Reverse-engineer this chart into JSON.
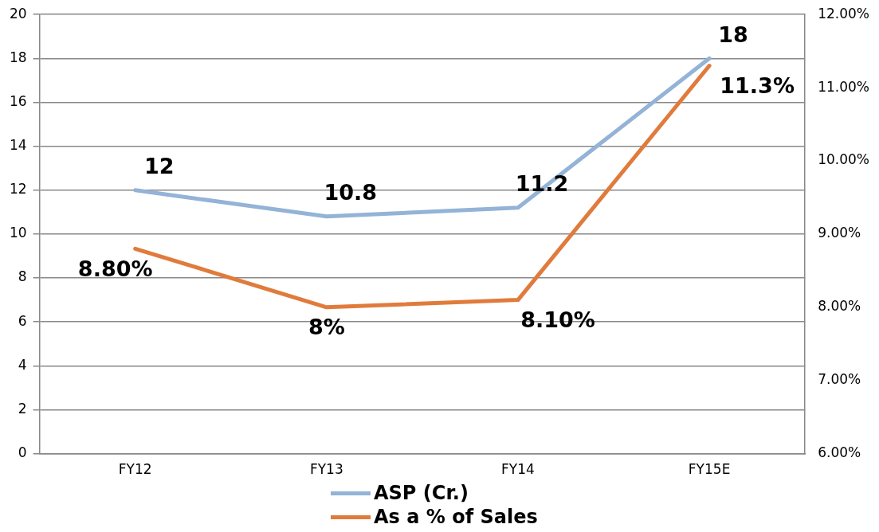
{
  "chart_data": {
    "type": "line",
    "categories": [
      "FY12",
      "FY13",
      "FY14",
      "FY15E"
    ],
    "series": [
      {
        "name": "ASP (Cr.)",
        "color": "#93b3d7",
        "values": [
          12,
          10.8,
          11.2,
          18
        ],
        "value_labels": [
          "12",
          "10.8",
          "11.2",
          "18"
        ]
      },
      {
        "name": "As a % of Sales",
        "color": "#e07b3c",
        "axis": "y2",
        "values": [
          8.8,
          8,
          8.1,
          11.3
        ],
        "value_labels": [
          "8.80%",
          "8%",
          "8.10%",
          "11.3%"
        ]
      }
    ],
    "ylim": [
      0,
      20
    ],
    "yticks": [
      0,
      2,
      4,
      6,
      8,
      10,
      12,
      14,
      16,
      18,
      20
    ],
    "y2lim": [
      6,
      12
    ],
    "y2ticks": [
      {
        "value": 6,
        "label": "6.00%"
      },
      {
        "value": 7,
        "label": "7.00%"
      },
      {
        "value": 8,
        "label": "8.00%"
      },
      {
        "value": 9,
        "label": "9.00%"
      },
      {
        "value": 10,
        "label": "10.00%"
      },
      {
        "value": 11,
        "label": "11.00%"
      },
      {
        "value": 12,
        "label": "12.00%"
      }
    ],
    "grid": "y",
    "legend": "bottom",
    "marker": "none",
    "line_style": "solid"
  }
}
